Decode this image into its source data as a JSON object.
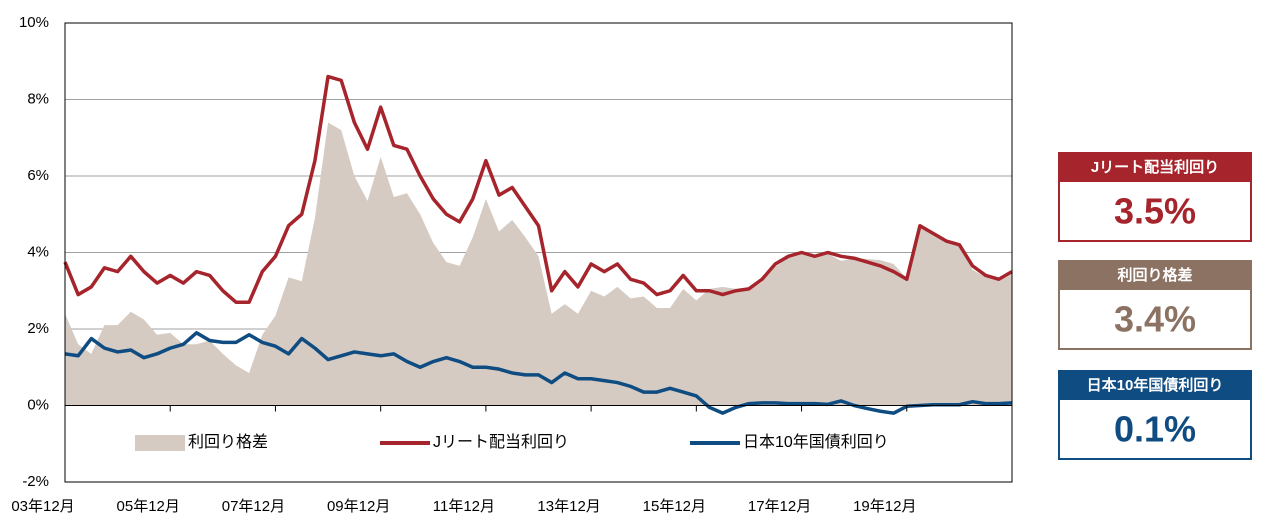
{
  "chart_data": {
    "type": "line",
    "categories": [
      "03年12月",
      null,
      null,
      null,
      null,
      null,
      null,
      null,
      "05年12月",
      null,
      null,
      null,
      null,
      null,
      null,
      null,
      "07年12月",
      null,
      null,
      null,
      null,
      null,
      null,
      null,
      "09年12月",
      null,
      null,
      null,
      null,
      null,
      null,
      null,
      "11年12月",
      null,
      null,
      null,
      null,
      null,
      null,
      null,
      "13年12月",
      null,
      null,
      null,
      null,
      null,
      null,
      null,
      "15年12月",
      null,
      null,
      null,
      null,
      null,
      null,
      null,
      "17年12月",
      null,
      null,
      null,
      null,
      null,
      null,
      null,
      "19年12月",
      null,
      null,
      null,
      null,
      null,
      null,
      null,
      null
    ],
    "series": [
      {
        "name": "利回り格差",
        "style": "area",
        "color": "#d5cbc3",
        "values": [
          2.4,
          1.6,
          1.35,
          2.1,
          2.1,
          2.45,
          2.25,
          1.85,
          1.9,
          1.6,
          1.6,
          1.7,
          1.35,
          1.05,
          0.85,
          1.85,
          2.35,
          3.35,
          3.25,
          4.9,
          7.4,
          7.2,
          6.0,
          5.35,
          6.5,
          5.45,
          5.55,
          5.0,
          4.25,
          3.75,
          3.65,
          4.4,
          5.4,
          4.55,
          4.85,
          4.4,
          3.9,
          2.4,
          2.65,
          2.4,
          3.0,
          2.85,
          3.1,
          2.8,
          2.85,
          2.55,
          2.55,
          3.05,
          2.75,
          3.05,
          3.1,
          3.05,
          3.0,
          3.23,
          3.63,
          3.85,
          3.95,
          3.85,
          3.97,
          3.78,
          3.85,
          3.83,
          3.8,
          3.7,
          3.32,
          4.7,
          4.48,
          4.28,
          4.18,
          3.55,
          3.35,
          3.25,
          3.43
        ]
      },
      {
        "name": "Jリート配当利回り",
        "style": "line",
        "color": "#a6242b",
        "values": [
          3.75,
          2.9,
          3.1,
          3.6,
          3.5,
          3.9,
          3.5,
          3.2,
          3.4,
          3.2,
          3.5,
          3.4,
          3.0,
          2.7,
          2.7,
          3.5,
          3.9,
          4.7,
          5.0,
          6.4,
          8.6,
          8.5,
          7.4,
          6.7,
          7.8,
          6.8,
          6.7,
          6.0,
          5.4,
          5.0,
          4.8,
          5.4,
          6.4,
          5.5,
          5.7,
          5.2,
          4.7,
          3.0,
          3.5,
          3.1,
          3.7,
          3.5,
          3.7,
          3.3,
          3.2,
          2.9,
          3.0,
          3.4,
          3.0,
          3.0,
          2.9,
          3.0,
          3.05,
          3.3,
          3.7,
          3.9,
          4.0,
          3.9,
          4.0,
          3.9,
          3.85,
          3.75,
          3.65,
          3.5,
          3.3,
          4.7,
          4.5,
          4.3,
          4.2,
          3.65,
          3.4,
          3.3,
          3.5
        ]
      },
      {
        "name": "日本10年国債利回り",
        "style": "line",
        "color": "#0f4c81",
        "values": [
          1.35,
          1.3,
          1.75,
          1.5,
          1.4,
          1.45,
          1.25,
          1.35,
          1.5,
          1.6,
          1.9,
          1.7,
          1.65,
          1.65,
          1.85,
          1.65,
          1.55,
          1.35,
          1.75,
          1.5,
          1.2,
          1.3,
          1.4,
          1.35,
          1.3,
          1.35,
          1.15,
          1.0,
          1.15,
          1.25,
          1.15,
          1.0,
          1.0,
          0.95,
          0.85,
          0.8,
          0.8,
          0.6,
          0.85,
          0.7,
          0.7,
          0.65,
          0.6,
          0.5,
          0.35,
          0.35,
          0.45,
          0.35,
          0.25,
          -0.05,
          -0.2,
          -0.05,
          0.05,
          0.07,
          0.07,
          0.05,
          0.05,
          0.05,
          0.03,
          0.12,
          0.0,
          -0.08,
          -0.15,
          -0.2,
          -0.02,
          0.0,
          0.02,
          0.02,
          0.02,
          0.1,
          0.05,
          0.05,
          0.07
        ]
      }
    ],
    "ylim": [
      -2,
      10
    ],
    "yticks": [
      {
        "value": -2,
        "label": "-2%"
      },
      {
        "value": 0,
        "label": "0%"
      },
      {
        "value": 2,
        "label": "2%"
      },
      {
        "value": 4,
        "label": "4%"
      },
      {
        "value": 6,
        "label": "6%"
      },
      {
        "value": 8,
        "label": "8%"
      },
      {
        "value": 10,
        "label": "10%"
      }
    ],
    "grid": true
  },
  "panels": [
    {
      "label": "Jリート配当利回り",
      "value": "3.5%",
      "color": "#a6242b"
    },
    {
      "label": "利回り格差",
      "value": "3.4%",
      "color": "#8b7262"
    },
    {
      "label": "日本10年国債利回り",
      "value": "0.1%",
      "color": "#0f4c81"
    }
  ]
}
